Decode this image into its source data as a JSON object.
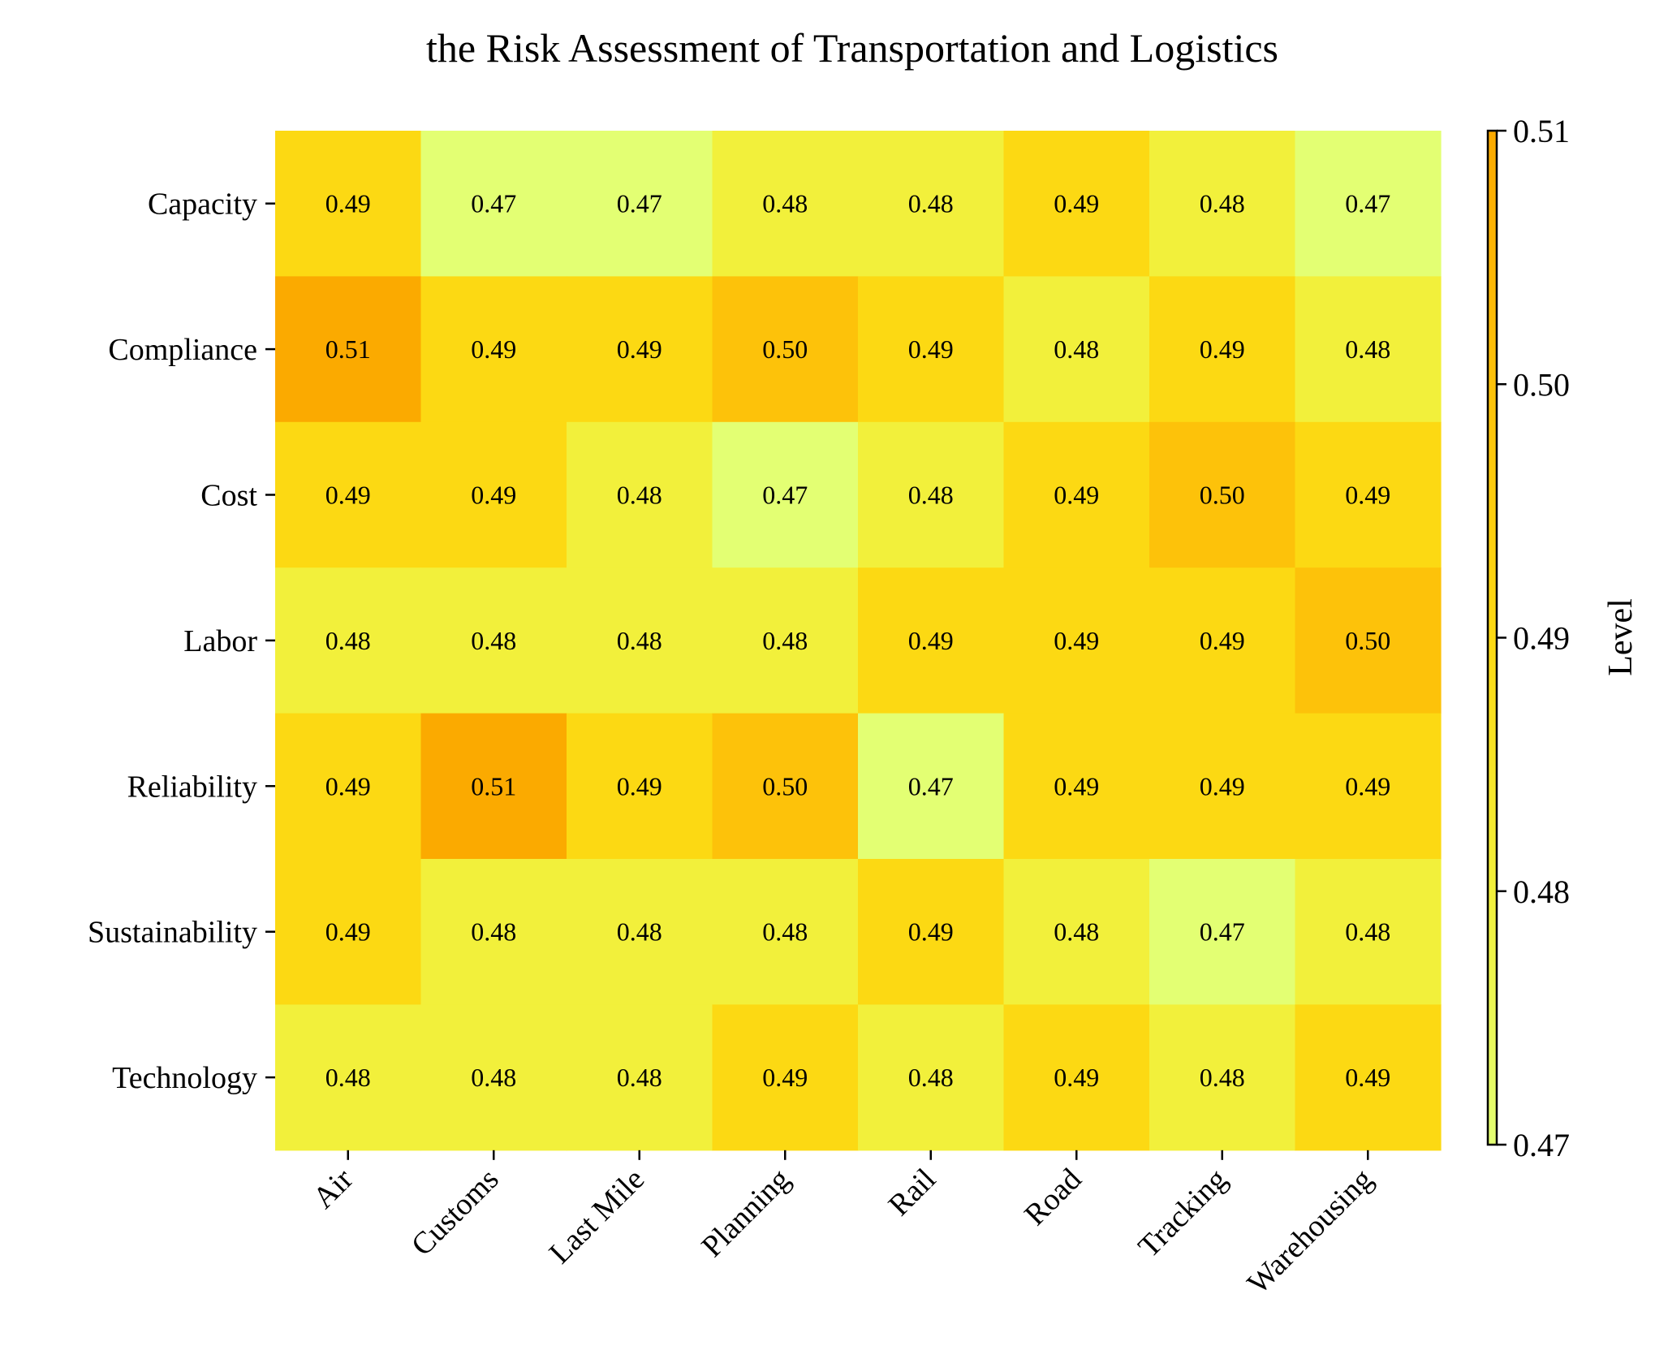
{
  "chart_data": {
    "type": "heatmap",
    "title": "the Risk Assessment of Transportation and Logistics",
    "rows": [
      "Capacity",
      "Compliance",
      "Cost",
      "Labor",
      "Reliability",
      "Sustainability",
      "Technology"
    ],
    "columns": [
      "Air",
      "Customs",
      "Last Mile",
      "Planning",
      "Rail",
      "Road",
      "Tracking",
      "Warehousing"
    ],
    "values": [
      [
        0.49,
        0.47,
        0.47,
        0.48,
        0.48,
        0.49,
        0.48,
        0.47
      ],
      [
        0.51,
        0.49,
        0.49,
        0.5,
        0.49,
        0.48,
        0.49,
        0.48
      ],
      [
        0.49,
        0.49,
        0.48,
        0.47,
        0.48,
        0.49,
        0.5,
        0.49
      ],
      [
        0.48,
        0.48,
        0.48,
        0.48,
        0.49,
        0.49,
        0.49,
        0.5
      ],
      [
        0.49,
        0.51,
        0.49,
        0.5,
        0.47,
        0.49,
        0.49,
        0.49
      ],
      [
        0.49,
        0.48,
        0.48,
        0.48,
        0.49,
        0.48,
        0.47,
        0.48
      ],
      [
        0.48,
        0.48,
        0.48,
        0.49,
        0.48,
        0.49,
        0.48,
        0.49
      ]
    ],
    "value_labels": [
      [
        "0.49",
        "0.47",
        "0.47",
        "0.48",
        "0.48",
        "0.49",
        "0.48",
        "0.47"
      ],
      [
        "0.51",
        "0.49",
        "0.49",
        "0.50",
        "0.49",
        "0.48",
        "0.49",
        "0.48"
      ],
      [
        "0.49",
        "0.49",
        "0.48",
        "0.47",
        "0.48",
        "0.49",
        "0.50",
        "0.49"
      ],
      [
        "0.48",
        "0.48",
        "0.48",
        "0.48",
        "0.49",
        "0.49",
        "0.49",
        "0.50"
      ],
      [
        "0.49",
        "0.51",
        "0.49",
        "0.50",
        "0.47",
        "0.49",
        "0.49",
        "0.49"
      ],
      [
        "0.49",
        "0.48",
        "0.48",
        "0.48",
        "0.49",
        "0.48",
        "0.47",
        "0.48"
      ],
      [
        "0.48",
        "0.48",
        "0.48",
        "0.49",
        "0.48",
        "0.49",
        "0.48",
        "0.49"
      ]
    ],
    "colorbar": {
      "label": "Level",
      "range": [
        0.47,
        0.51
      ],
      "ticks": [
        0.47,
        0.48,
        0.49,
        0.5,
        0.51
      ],
      "tick_labels": [
        "0.47",
        "0.48",
        "0.49",
        "0.50",
        "0.51"
      ]
    },
    "colormap": [
      "#e3ff73",
      "#f2f03b",
      "#fcd913",
      "#fdc20a",
      "#fbaa00"
    ],
    "grid": false
  }
}
